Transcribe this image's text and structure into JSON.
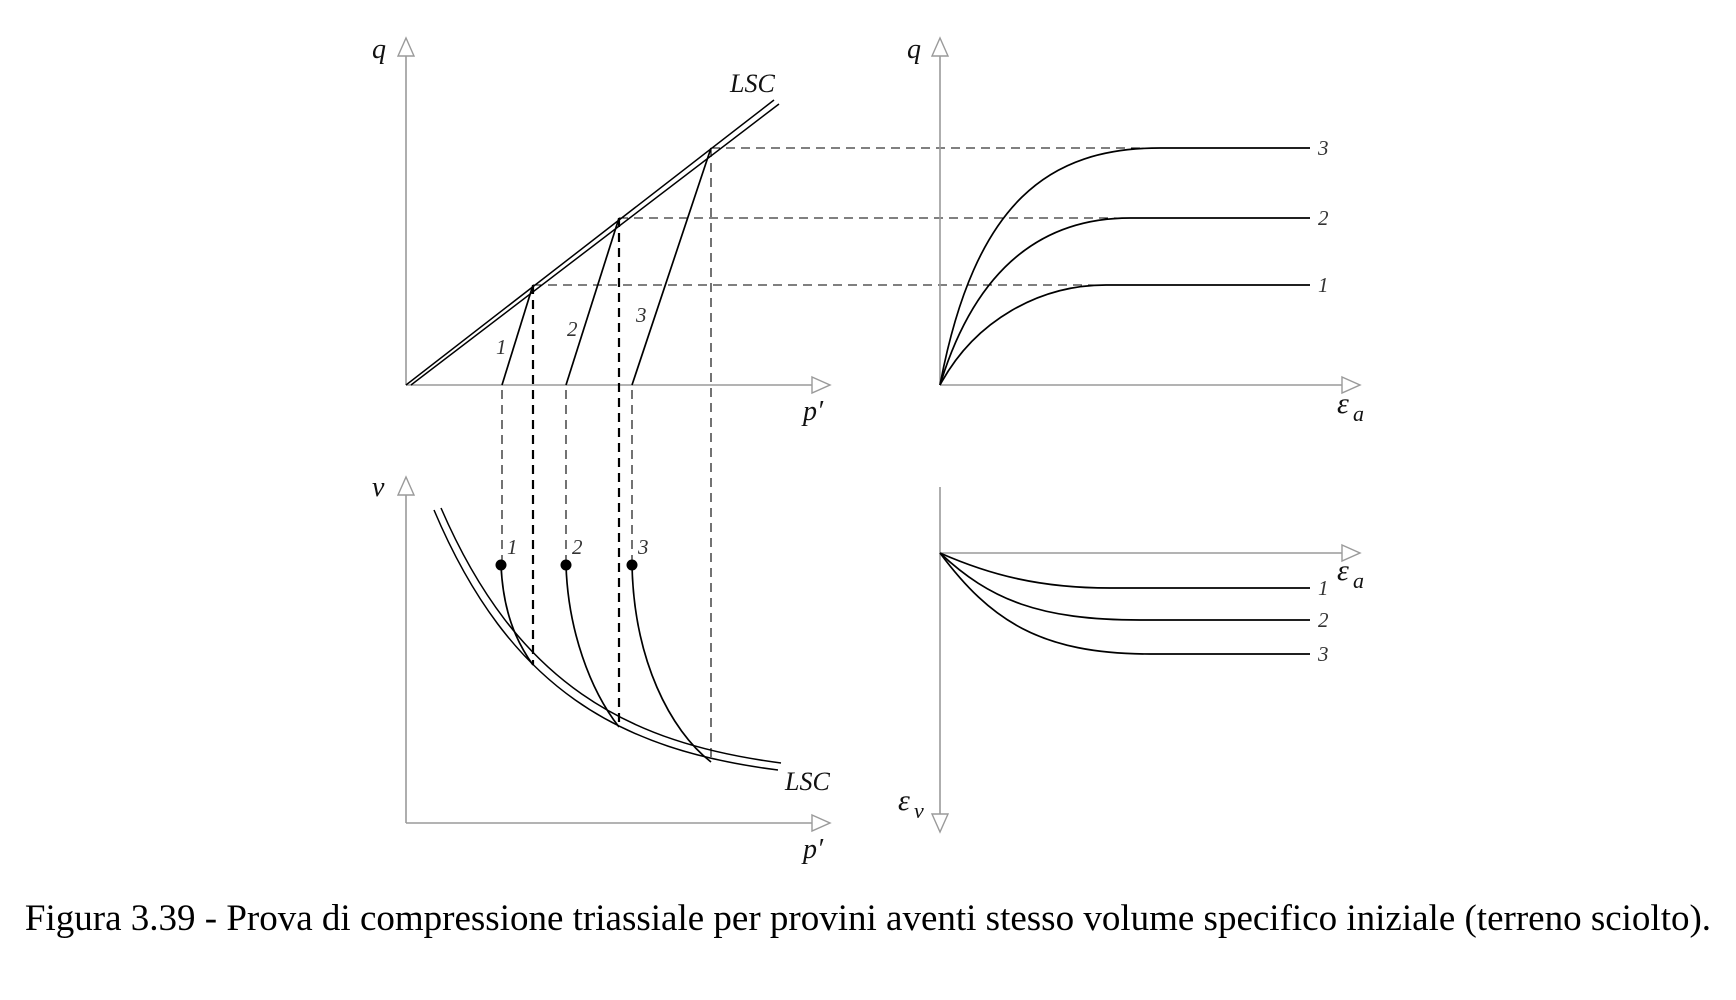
{
  "labels": {
    "top_left_y": "q",
    "top_left_x": "p′",
    "top_left_line": "LSC",
    "top_right_y": "q",
    "top_right_x": "ε",
    "top_right_x_sub": "a",
    "bottom_left_y": "v",
    "bottom_left_x": "p′",
    "bottom_left_line": "LSC",
    "bottom_right_x": "ε",
    "bottom_right_x_sub": "a",
    "bottom_right_y": "ε",
    "bottom_right_y_sub": "v"
  },
  "samples": [
    {
      "id": "1"
    },
    {
      "id": "2"
    },
    {
      "id": "3"
    }
  ],
  "caption": "Figura 3.39 - Prova di compressione triassiale per provini aventi stesso volume specifico iniziale (terreno sciolto).",
  "colors": {
    "axes": "#9a9a9a",
    "curves": "#000000",
    "background": "#ffffff"
  }
}
